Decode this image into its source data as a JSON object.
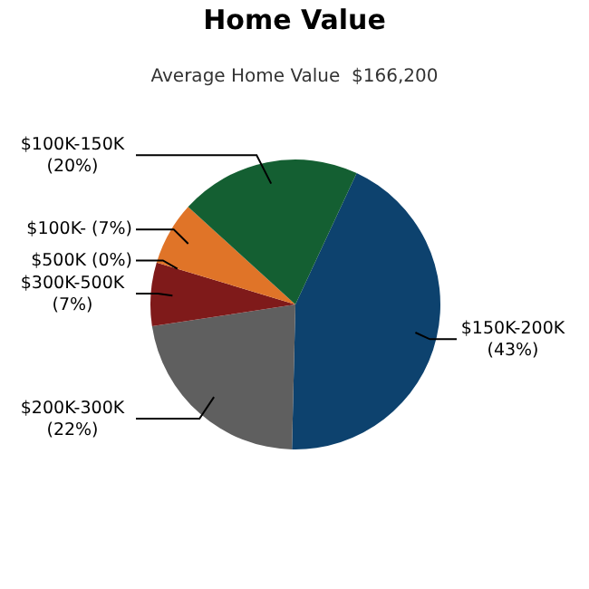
{
  "chart_data": {
    "type": "pie",
    "title": "Home Value",
    "subtitle": "Average Home Value  $166,200",
    "categories": [
      "$150K-200K",
      "$200K-300K",
      "$300K-500K",
      "$500K",
      "$100K-",
      "$100K-150K"
    ],
    "values": [
      43,
      22,
      7,
      0,
      7,
      20
    ],
    "value_labels": [
      "(43%)",
      "(22%)",
      "(7%)",
      "(0%)",
      "(7%)",
      "(20%)"
    ],
    "colors": [
      "#0d426e",
      "#5f5f5f",
      "#7f1a1a",
      "#9a2a1a",
      "#e07428",
      "#145f32"
    ]
  }
}
